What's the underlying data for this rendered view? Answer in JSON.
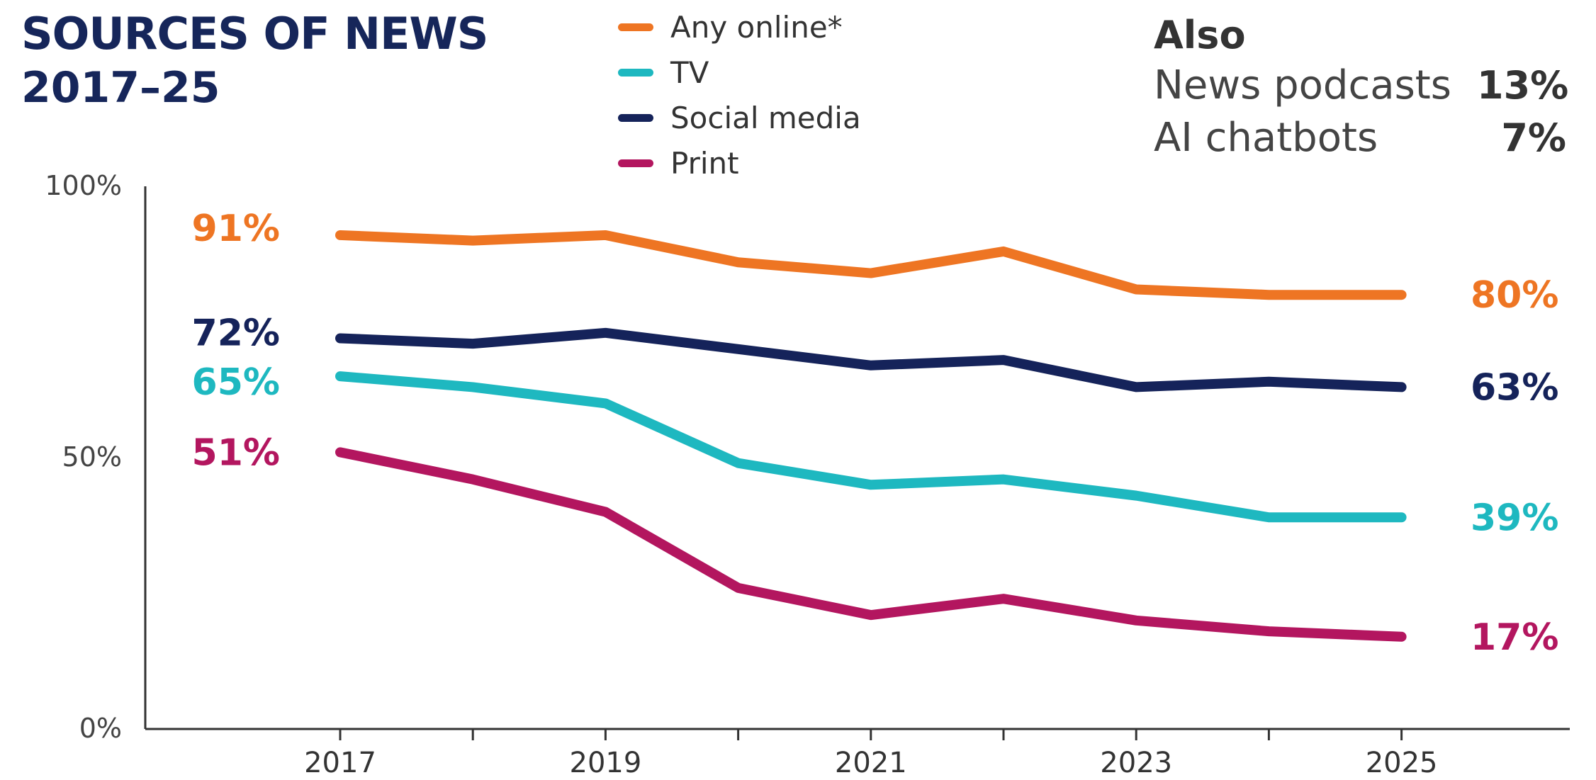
{
  "header": {
    "title": "SOURCES OF NEWS",
    "subtitle": "2017–25"
  },
  "also": {
    "title": "Also",
    "items": [
      {
        "label": "News podcasts",
        "value": "13%"
      },
      {
        "label": "AI chatbots",
        "value": "7%"
      }
    ]
  },
  "chart_data": {
    "type": "line",
    "x": [
      2017,
      2018,
      2019,
      2020,
      2021,
      2022,
      2023,
      2024,
      2025
    ],
    "x_tick_labels": [
      "2017",
      "2019",
      "2021",
      "2023",
      "2025"
    ],
    "y_tick_labels": [
      "100%",
      "50%",
      "0%"
    ],
    "ylim": [
      0,
      100
    ],
    "grid": false,
    "legend_position": "top",
    "series": [
      {
        "name": "Any online*",
        "color": "#ee7523",
        "values": [
          91,
          90,
          91,
          86,
          84,
          88,
          81,
          80,
          80
        ],
        "start_label": "91%",
        "end_label": "80%"
      },
      {
        "name": "TV",
        "color": "#1eb8c0",
        "values": [
          65,
          63,
          60,
          49,
          45,
          46,
          43,
          39,
          39
        ],
        "start_label": "65%",
        "end_label": "39%"
      },
      {
        "name": "Social media",
        "color": "#15235a",
        "values": [
          72,
          71,
          73,
          70,
          67,
          68,
          63,
          64,
          63
        ],
        "start_label": "72%",
        "end_label": "63%"
      },
      {
        "name": "Print",
        "color": "#b3165f",
        "values": [
          51,
          46,
          40,
          26,
          21,
          24,
          20,
          18,
          17
        ],
        "start_label": "51%",
        "end_label": "17%"
      }
    ]
  }
}
